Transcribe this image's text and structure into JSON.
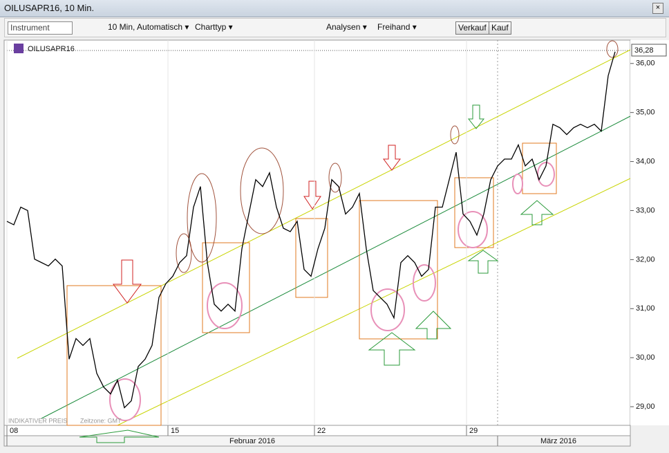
{
  "window": {
    "title": "OILUSAPR16, 10 Min."
  },
  "toolbar": {
    "instrument": "Instrument",
    "interval": "10 Min, Automatisch ▾",
    "charttype": "Charttyp ▾",
    "analysen": "Analysen ▾",
    "freihand": "Freihand ▾",
    "sell": "Verkauf",
    "buy": "Kauf"
  },
  "footnote": {
    "price_note": "INDIKATIVER PREIS",
    "timezone": "Zeitzone: GMT"
  },
  "chart_data": {
    "type": "line",
    "categories": [
      null,
      null,
      null,
      null,
      null,
      null,
      null,
      null,
      null,
      null,
      null,
      null,
      null,
      null,
      null,
      null,
      null,
      null,
      null,
      null,
      null,
      null,
      null,
      null,
      null,
      null,
      null,
      null,
      null,
      null,
      null,
      null,
      null,
      null,
      null,
      null,
      null,
      null,
      null,
      null,
      null,
      null,
      null,
      null,
      null,
      null,
      null,
      null,
      null,
      null,
      null,
      null,
      null,
      null,
      null,
      null,
      null,
      null,
      null,
      null,
      null,
      null,
      null,
      null,
      null,
      null,
      null,
      null,
      null,
      null,
      null,
      null,
      null,
      null,
      null,
      null,
      null,
      null,
      null,
      null,
      null,
      null,
      null,
      null,
      null,
      null,
      null,
      null,
      null
    ],
    "series": [
      {
        "name": "OILUSAPR16",
        "color": "#000000",
        "values": [
          32.78,
          32.71,
          33.07,
          33.0,
          32.01,
          31.94,
          31.87,
          32.01,
          31.87,
          29.97,
          30.39,
          30.25,
          30.39,
          29.68,
          29.4,
          29.26,
          29.54,
          28.98,
          29.12,
          29.82,
          29.97,
          30.25,
          31.23,
          31.51,
          31.66,
          31.94,
          32.08,
          33.07,
          33.49,
          31.94,
          31.09,
          30.95,
          31.09,
          30.95,
          32.22,
          32.93,
          33.63,
          33.49,
          33.77,
          33.07,
          32.64,
          32.57,
          32.78,
          31.8,
          31.66,
          32.22,
          32.64,
          33.63,
          33.49,
          32.93,
          33.07,
          33.35,
          32.22,
          31.37,
          31.23,
          31.09,
          30.81,
          31.94,
          32.08,
          31.94,
          31.66,
          31.8,
          33.07,
          33.07,
          33.63,
          34.19,
          32.93,
          32.78,
          32.5,
          32.93,
          33.63,
          33.91,
          34.05,
          34.05,
          34.34,
          33.91,
          34.05,
          33.63,
          33.91,
          34.76,
          34.69,
          34.55,
          34.69,
          34.76,
          34.69,
          34.76,
          34.62,
          35.75,
          36.24
        ]
      }
    ],
    "ylim": [
      28.62,
      36.42
    ],
    "yticks": [
      {
        "value": 29,
        "label": "29,00"
      },
      {
        "value": 30,
        "label": "30,00"
      },
      {
        "value": 31,
        "label": "31,00"
      },
      {
        "value": 32,
        "label": "32,00"
      },
      {
        "value": 33,
        "label": "33,00"
      },
      {
        "value": 34,
        "label": "34,00"
      },
      {
        "value": 35,
        "label": "35,00"
      },
      {
        "value": 36,
        "label": "36,00"
      }
    ],
    "xticks": [
      {
        "value": 0,
        "label": "08"
      },
      {
        "value": 23.3,
        "label": "15"
      },
      {
        "value": 44.5,
        "label": "22"
      },
      {
        "value": 66.5,
        "label": "29"
      }
    ],
    "month_ticks": [
      {
        "value": 0,
        "label": "Februar 2016"
      },
      {
        "value": 71,
        "label": "März 2016"
      }
    ],
    "last_price": "36,28",
    "grid": true
  }
}
